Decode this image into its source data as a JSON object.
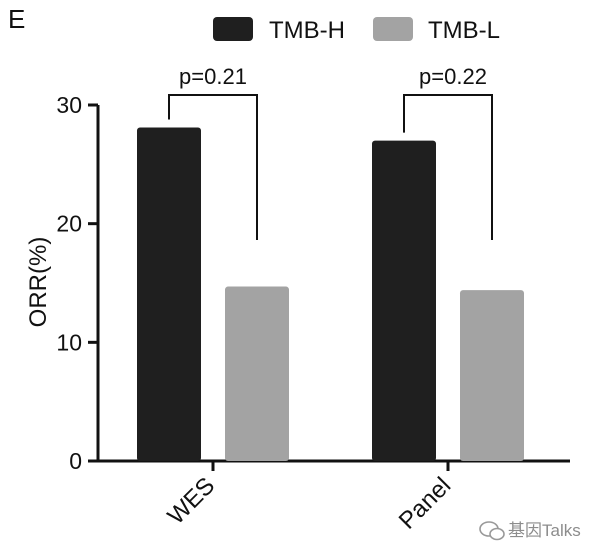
{
  "panel_letter": "E",
  "watermark": "基因Talks",
  "colors": {
    "tmb_h": "#1f1f1f",
    "tmb_l": "#a3a3a3",
    "axis": "#111111"
  },
  "chart_data": {
    "type": "bar",
    "ylabel": "ORR(%)",
    "ylim": [
      0,
      30
    ],
    "yticks": [
      0,
      10,
      20,
      30
    ],
    "categories": [
      "WES",
      "Panel"
    ],
    "series": [
      {
        "name": "TMB-H",
        "values": [
          28.1,
          27.0
        ]
      },
      {
        "name": "TMB-L",
        "values": [
          14.7,
          14.4
        ]
      }
    ],
    "annotations": [
      "p=0.21",
      "p=0.22"
    ],
    "legend_position": "top-right"
  }
}
